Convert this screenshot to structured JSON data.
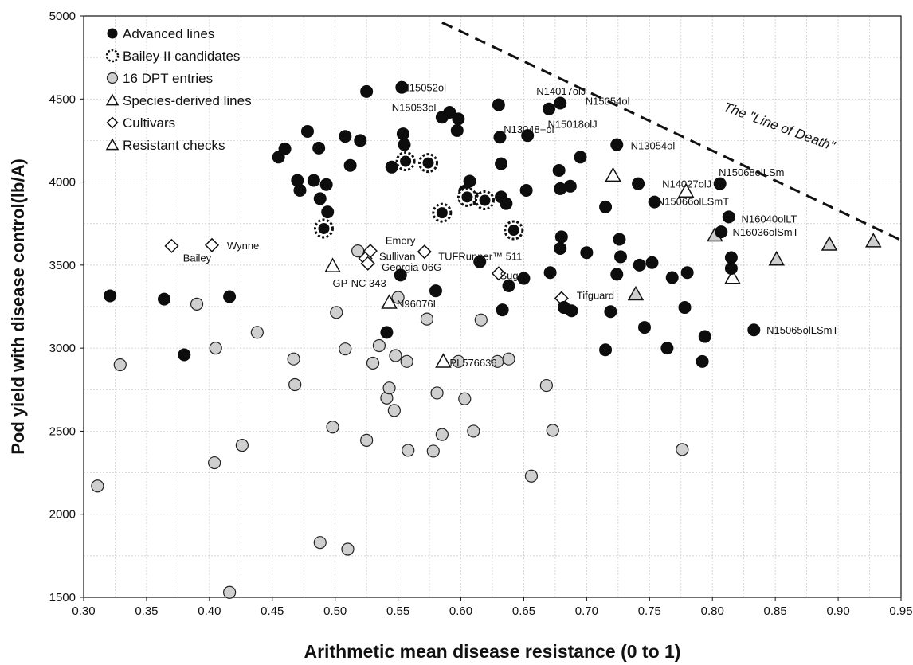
{
  "chart_data": {
    "type": "scatter",
    "xlabel": "Arithmetic mean disease resistance (0 to 1)",
    "ylabel": "Pod yield with disease control(lb/A)",
    "xlim": [
      0.3,
      0.95
    ],
    "ylim": [
      1500,
      5000
    ],
    "x_ticks": [
      "0.30",
      "0.35",
      "0.40",
      "0.45",
      "0.50",
      "0.55",
      "0.60",
      "0.65",
      "0.70",
      "0.75",
      "0.80",
      "0.85",
      "0.90",
      "0.95"
    ],
    "y_ticks": [
      "1500",
      "2000",
      "2500",
      "3000",
      "3500",
      "4000",
      "4500",
      "5000"
    ],
    "grid": true,
    "legend_position": "top-left",
    "legend": [
      {
        "label": "Advanced lines",
        "marker": "filled-circle"
      },
      {
        "label": "Bailey II candidates",
        "marker": "starburst-circle"
      },
      {
        "label": "16 DPT entries",
        "marker": "gray-circle"
      },
      {
        "label": "Species-derived lines",
        "marker": "gray-triangle"
      },
      {
        "label": "Cultivars",
        "marker": "diamond"
      },
      {
        "label": "Resistant checks",
        "marker": "open-triangle"
      }
    ],
    "series": [
      {
        "name": "Advanced lines",
        "marker": "filled-circle",
        "points": [
          [
            0.321,
            3315
          ],
          [
            0.364,
            3295
          ],
          [
            0.38,
            2960
          ],
          [
            0.416,
            3310
          ],
          [
            0.455,
            4150
          ],
          [
            0.46,
            4200
          ],
          [
            0.47,
            4010
          ],
          [
            0.472,
            3950
          ],
          [
            0.478,
            4305
          ],
          [
            0.483,
            4010
          ],
          [
            0.487,
            4205
          ],
          [
            0.488,
            3900
          ],
          [
            0.493,
            3985
          ],
          [
            0.494,
            3820
          ],
          [
            0.508,
            4275
          ],
          [
            0.512,
            4100
          ],
          [
            0.52,
            4250
          ],
          [
            0.525,
            4545
          ],
          [
            0.541,
            3095
          ],
          [
            0.545,
            4090
          ],
          [
            0.552,
            3440
          ],
          [
            0.553,
            4570
          ],
          [
            0.554,
            4290
          ],
          [
            0.555,
            4225
          ],
          [
            0.58,
            3345
          ],
          [
            0.585,
            4390
          ],
          [
            0.591,
            4420
          ],
          [
            0.597,
            4310
          ],
          [
            0.598,
            4380
          ],
          [
            0.603,
            3900
          ],
          [
            0.603,
            3945
          ],
          [
            0.607,
            4005
          ],
          [
            0.612,
            3900
          ],
          [
            0.615,
            3520
          ],
          [
            0.63,
            4465
          ],
          [
            0.631,
            4270
          ],
          [
            0.632,
            4110
          ],
          [
            0.632,
            3910
          ],
          [
            0.633,
            3230
          ],
          [
            0.636,
            3870
          ],
          [
            0.638,
            3375
          ],
          [
            0.65,
            3420
          ],
          [
            0.652,
            3950
          ],
          [
            0.653,
            4280
          ],
          [
            0.67,
            4440
          ],
          [
            0.671,
            3455
          ],
          [
            0.678,
            4070
          ],
          [
            0.679,
            4475
          ],
          [
            0.679,
            3960
          ],
          [
            0.679,
            3600
          ],
          [
            0.68,
            3670
          ],
          [
            0.682,
            3245
          ],
          [
            0.687,
            3975
          ],
          [
            0.688,
            3225
          ],
          [
            0.695,
            4150
          ],
          [
            0.7,
            3575
          ],
          [
            0.715,
            3850
          ],
          [
            0.715,
            2990
          ],
          [
            0.719,
            3220
          ],
          [
            0.724,
            4225
          ],
          [
            0.724,
            3445
          ],
          [
            0.726,
            3655
          ],
          [
            0.727,
            3550
          ],
          [
            0.741,
            3990
          ],
          [
            0.742,
            3500
          ],
          [
            0.746,
            3125
          ],
          [
            0.752,
            3515
          ],
          [
            0.754,
            3880
          ],
          [
            0.764,
            3000
          ],
          [
            0.768,
            3425
          ],
          [
            0.778,
            3245
          ],
          [
            0.78,
            3455
          ],
          [
            0.792,
            2920
          ],
          [
            0.794,
            3070
          ],
          [
            0.806,
            3990
          ],
          [
            0.807,
            3700
          ],
          [
            0.813,
            3790
          ],
          [
            0.815,
            3480
          ],
          [
            0.815,
            3545
          ],
          [
            0.833,
            3110
          ]
        ],
        "labels": [
          {
            "text": "N15052ol",
            "x": 0.553,
            "y": 4570
          },
          {
            "text": "N15053ol",
            "x": 0.545,
            "y": 4450
          },
          {
            "text": "N14017olJ",
            "x": 0.66,
            "y": 4550
          },
          {
            "text": "N15054ol",
            "x": 0.699,
            "y": 4490
          },
          {
            "text": "N15018olJ",
            "x": 0.669,
            "y": 4350
          },
          {
            "text": "N13048+ol",
            "x": 0.634,
            "y": 4320
          },
          {
            "text": "N13054ol",
            "x": 0.735,
            "y": 4220
          },
          {
            "text": "N15068olLSm",
            "x": 0.805,
            "y": 4060
          },
          {
            "text": "N14027olJ",
            "x": 0.76,
            "y": 3990
          },
          {
            "text": "N15066olLSmT",
            "x": 0.756,
            "y": 3885
          },
          {
            "text": "N16040olLT",
            "x": 0.823,
            "y": 3780
          },
          {
            "text": "N16036olSmT",
            "x": 0.816,
            "y": 3700
          },
          {
            "text": "N15065olLSmT",
            "x": 0.843,
            "y": 3110
          }
        ]
      },
      {
        "name": "Bailey II candidates",
        "marker": "starburst-circle",
        "points": [
          [
            0.491,
            3720
          ],
          [
            0.556,
            4125
          ],
          [
            0.574,
            4115
          ],
          [
            0.585,
            3815
          ],
          [
            0.605,
            3910
          ],
          [
            0.619,
            3890
          ],
          [
            0.642,
            3710
          ]
        ]
      },
      {
        "name": "16 DPT entries",
        "marker": "gray-circle",
        "points": [
          [
            0.311,
            2170
          ],
          [
            0.329,
            2900
          ],
          [
            0.39,
            3265
          ],
          [
            0.404,
            2310
          ],
          [
            0.405,
            3000
          ],
          [
            0.416,
            1530
          ],
          [
            0.426,
            2415
          ],
          [
            0.438,
            3095
          ],
          [
            0.467,
            2935
          ],
          [
            0.468,
            2780
          ],
          [
            0.488,
            1830
          ],
          [
            0.498,
            2525
          ],
          [
            0.501,
            3215
          ],
          [
            0.508,
            2995
          ],
          [
            0.51,
            1790
          ],
          [
            0.518,
            3585
          ],
          [
            0.525,
            2445
          ],
          [
            0.53,
            2910
          ],
          [
            0.535,
            3015
          ],
          [
            0.541,
            2700
          ],
          [
            0.543,
            2760
          ],
          [
            0.547,
            2625
          ],
          [
            0.548,
            2955
          ],
          [
            0.55,
            3305
          ],
          [
            0.557,
            2920
          ],
          [
            0.558,
            2385
          ],
          [
            0.573,
            3175
          ],
          [
            0.578,
            2380
          ],
          [
            0.581,
            2730
          ],
          [
            0.585,
            2480
          ],
          [
            0.598,
            2920
          ],
          [
            0.603,
            2695
          ],
          [
            0.61,
            2500
          ],
          [
            0.616,
            3170
          ],
          [
            0.629,
            2920
          ],
          [
            0.638,
            2935
          ],
          [
            0.656,
            2230
          ],
          [
            0.668,
            2775
          ],
          [
            0.673,
            2505
          ],
          [
            0.776,
            2390
          ]
        ]
      },
      {
        "name": "Species-derived lines",
        "marker": "gray-triangle",
        "points": [
          [
            0.739,
            3325
          ],
          [
            0.802,
            3680
          ],
          [
            0.851,
            3535
          ],
          [
            0.893,
            3625
          ],
          [
            0.928,
            3645
          ]
        ]
      },
      {
        "name": "Cultivars",
        "marker": "diamond",
        "points": [
          [
            0.37,
            3615
          ],
          [
            0.402,
            3620
          ],
          [
            0.524,
            3540
          ],
          [
            0.526,
            3510
          ],
          [
            0.528,
            3585
          ],
          [
            0.571,
            3580
          ],
          [
            0.63,
            3450
          ],
          [
            0.68,
            3300
          ]
        ],
        "labels": [
          {
            "text": "Bailey",
            "x": 0.379,
            "y": 3545
          },
          {
            "text": "Wynne",
            "x": 0.414,
            "y": 3620
          },
          {
            "text": "Emery",
            "x": 0.54,
            "y": 3650
          },
          {
            "text": "Sullivan",
            "x": 0.535,
            "y": 3555
          },
          {
            "text": "Georgia-06G",
            "x": 0.537,
            "y": 3490
          },
          {
            "text": "GP-NC 343",
            "x": 0.498,
            "y": 3395
          },
          {
            "text": "TUFRunner™ 511",
            "x": 0.582,
            "y": 3555
          },
          {
            "text": "Sugg",
            "x": 0.631,
            "y": 3440
          },
          {
            "text": "Tifguard",
            "x": 0.692,
            "y": 3320
          }
        ]
      },
      {
        "name": "Resistant checks",
        "marker": "open-triangle",
        "points": [
          [
            0.498,
            3495
          ],
          [
            0.543,
            3275
          ],
          [
            0.586,
            2920
          ],
          [
            0.721,
            4040
          ],
          [
            0.779,
            3945
          ],
          [
            0.816,
            3425
          ]
        ],
        "labels": [
          {
            "text": "N96076L",
            "x": 0.549,
            "y": 3270
          },
          {
            "text": "PI 576636",
            "x": 0.591,
            "y": 2915
          }
        ]
      }
    ],
    "annotations": [
      {
        "text": "The \"Line of Death\"",
        "x": 0.808,
        "y": 4430,
        "rotation": 20
      }
    ],
    "line_of_death": {
      "style": "dashed",
      "from": [
        0.585,
        4960
      ],
      "to": [
        0.95,
        3650
      ]
    }
  }
}
